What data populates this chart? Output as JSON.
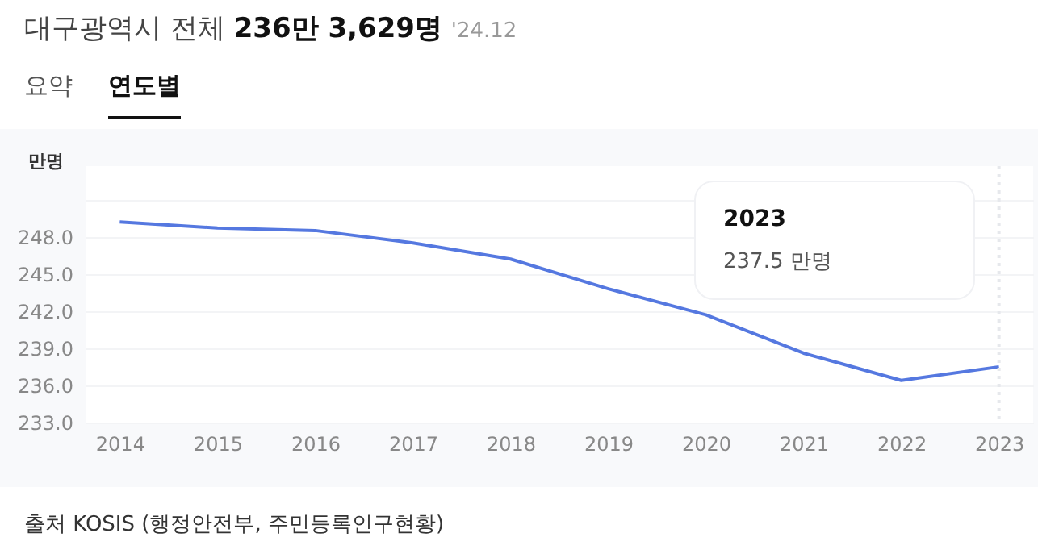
{
  "chart_data": {
    "type": "line",
    "title": "대구광역시 전체",
    "subtitle": "236만 3,629명",
    "ylabel": "만명",
    "categories": [
      "2014",
      "2015",
      "2016",
      "2017",
      "2018",
      "2019",
      "2020",
      "2021",
      "2022",
      "2023"
    ],
    "series": [
      {
        "color": "#5578e0",
        "values": [
          249.2,
          248.7,
          248.5,
          247.5,
          246.2,
          243.8,
          241.7,
          238.6,
          236.4,
          237.5
        ]
      }
    ],
    "ylim": [
      233,
      253.7
    ],
    "yticks": [
      {
        "value": 233,
        "label": "233.0"
      },
      {
        "value": 236,
        "label": "236.0"
      },
      {
        "value": 239,
        "label": "239.0"
      },
      {
        "value": 242,
        "label": "242.0"
      },
      {
        "value": 245,
        "label": "245.0"
      },
      {
        "value": 248,
        "label": "248.0"
      },
      {
        "value": 251,
        "label": null
      }
    ],
    "grid": "y",
    "ref_lines": [
      {
        "axis": "x",
        "value": "2023",
        "color": "#e6e8ec",
        "line_style": "dotted"
      }
    ],
    "annotations": [
      "'24.12",
      "요약",
      "연도별",
      "출처 KOSIS (행정안전부, 주민등록인구현황)",
      "2023",
      "237.5 만명"
    ]
  }
}
